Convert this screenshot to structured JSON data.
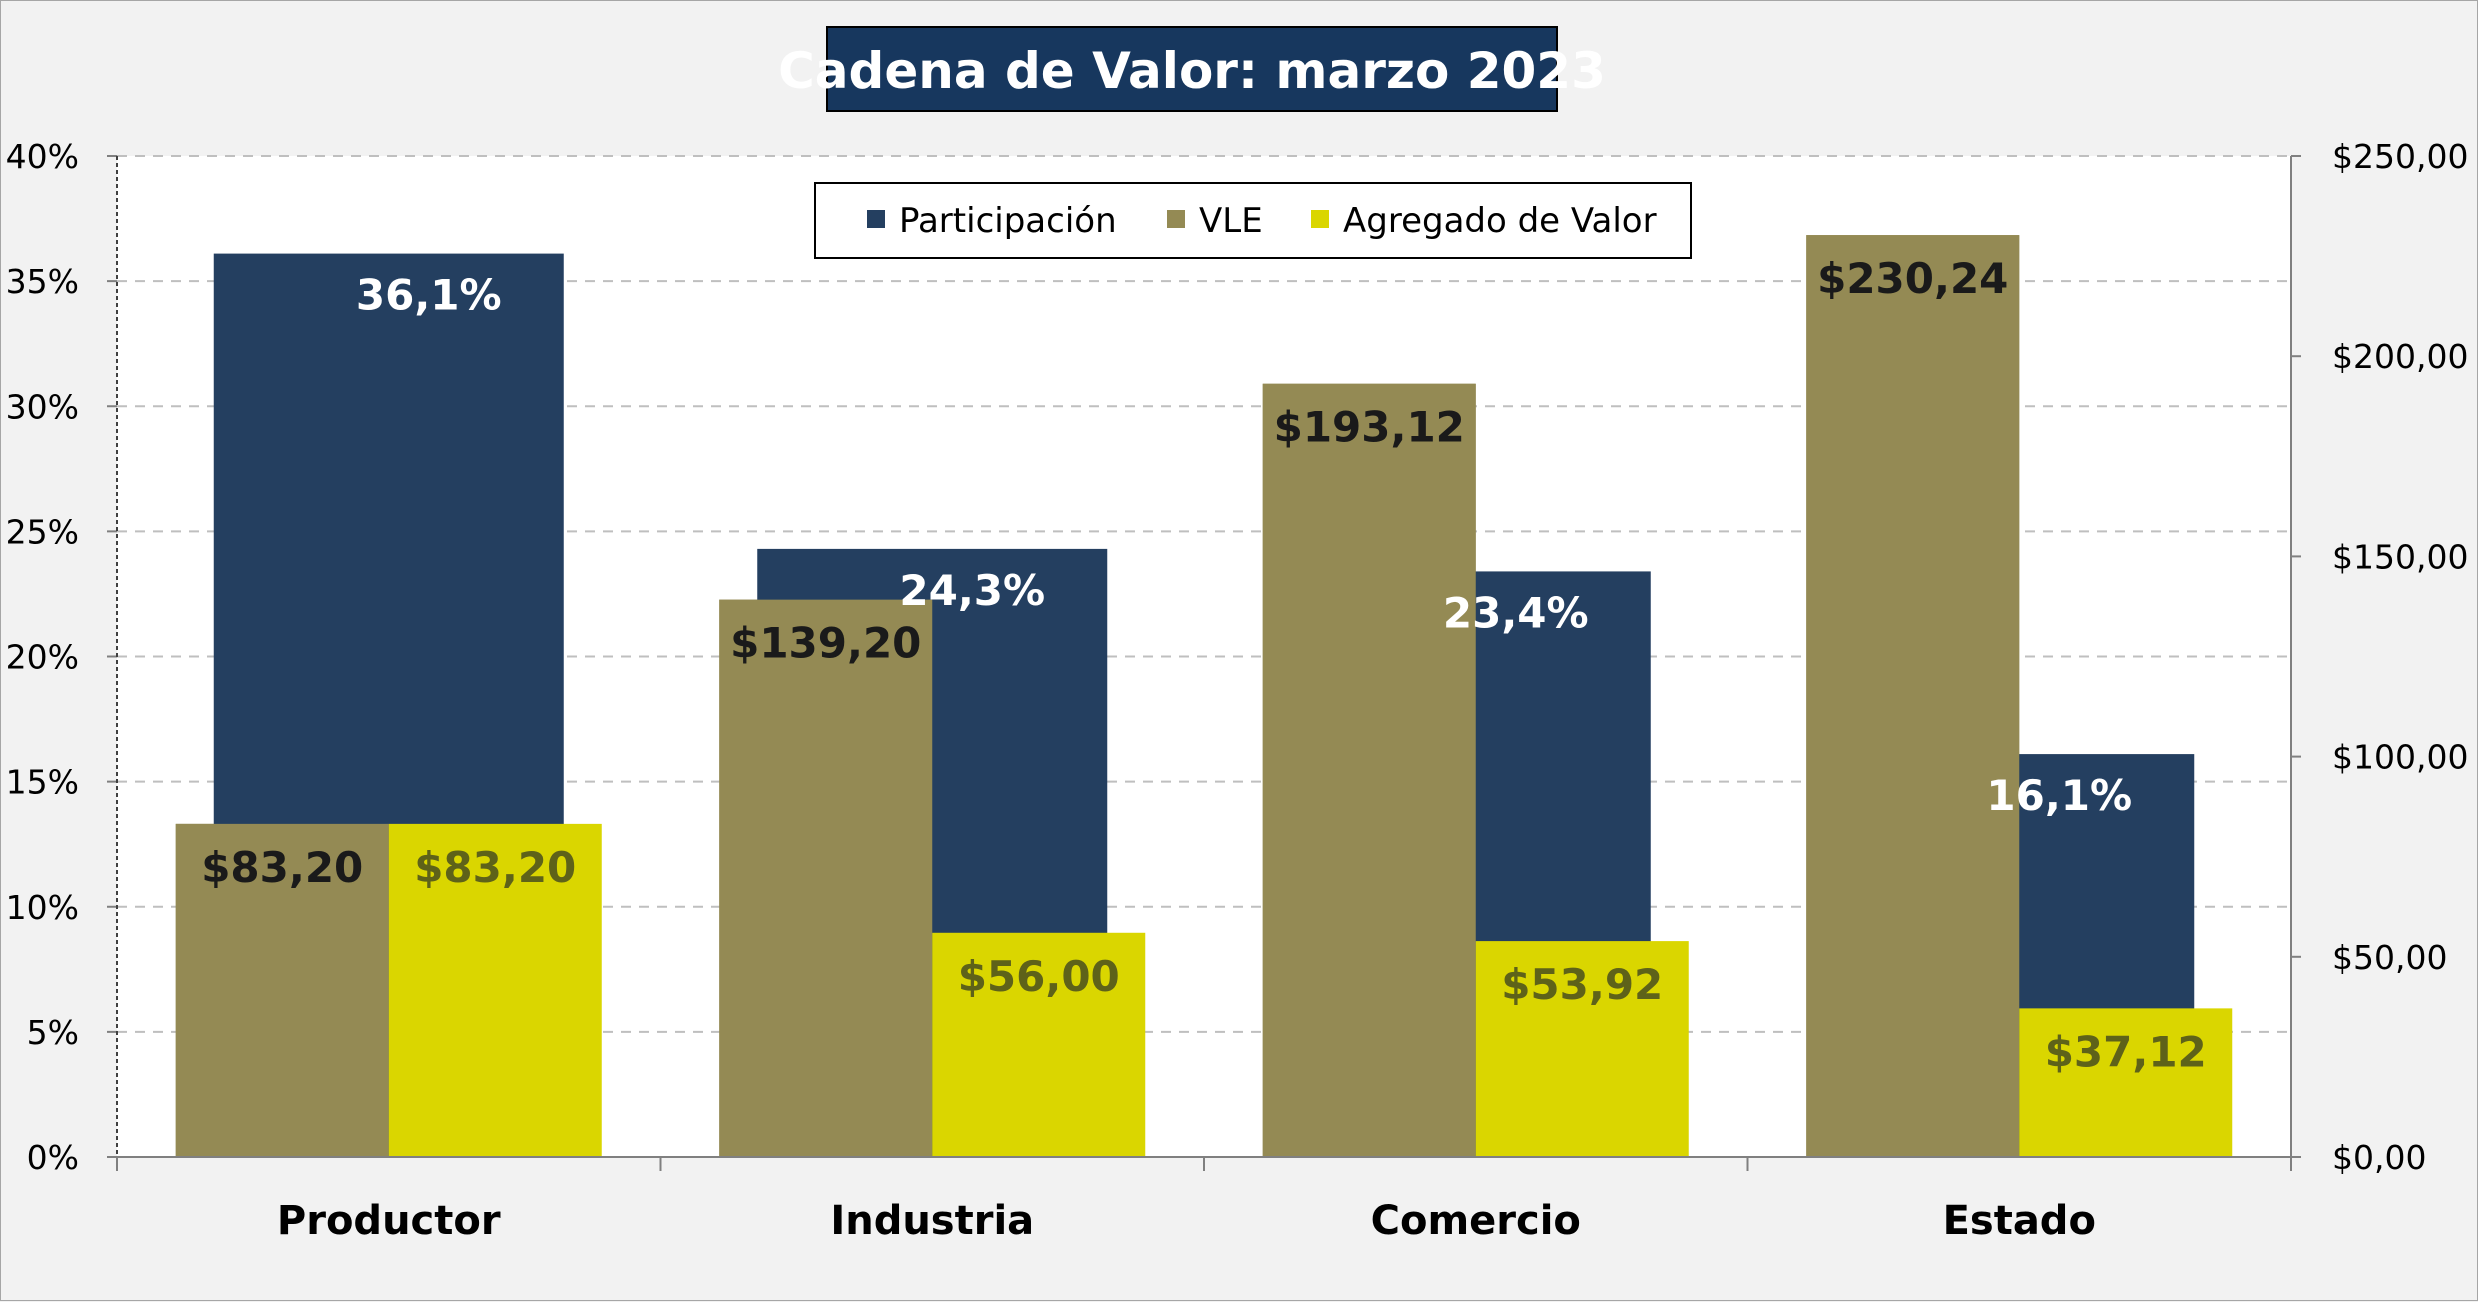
{
  "chart_data": {
    "type": "bar",
    "title": "Cadena de Valor: marzo 2023",
    "categories": [
      "Productor",
      "Industria",
      "Comercio",
      "Estado"
    ],
    "series": [
      {
        "name": "Participación",
        "axis": "left",
        "values": [
          36.1,
          24.3,
          23.4,
          16.1
        ],
        "labels": [
          "36,1%",
          "24,3%",
          "23,4%",
          "16,1%"
        ],
        "color": "#243f60",
        "label_color": "#ffffff"
      },
      {
        "name": "VLE",
        "axis": "right",
        "values": [
          83.2,
          139.2,
          193.12,
          230.24
        ],
        "labels": [
          "$83,20",
          "$139,20",
          "$193,12",
          "$230,24"
        ],
        "color": "#948a54",
        "label_color": "#1a1a1a"
      },
      {
        "name": "Agregado de Valor",
        "axis": "right",
        "values": [
          83.2,
          56.0,
          53.92,
          37.12
        ],
        "labels": [
          "$83,20",
          "$56,00",
          "$53,92",
          "$37,12"
        ],
        "color": "#dad600",
        "label_color": "#5e6219"
      }
    ],
    "y_left": {
      "ylim": [
        0,
        40
      ],
      "ticks": [
        "0%",
        "5%",
        "10%",
        "15%",
        "20%",
        "25%",
        "30%",
        "35%",
        "40%"
      ]
    },
    "y_right": {
      "ylim": [
        0,
        250
      ],
      "ticks": [
        "$0,00",
        "$50,00",
        "$100,00",
        "$150,00",
        "$200,00",
        "$250,00"
      ]
    },
    "grid": true,
    "legend_position": "top-center",
    "colors": {
      "background": "#f2f2f2",
      "plot_area": "#ffffff",
      "title_box": "#17375e",
      "gridline": "#bfbfbf"
    }
  }
}
